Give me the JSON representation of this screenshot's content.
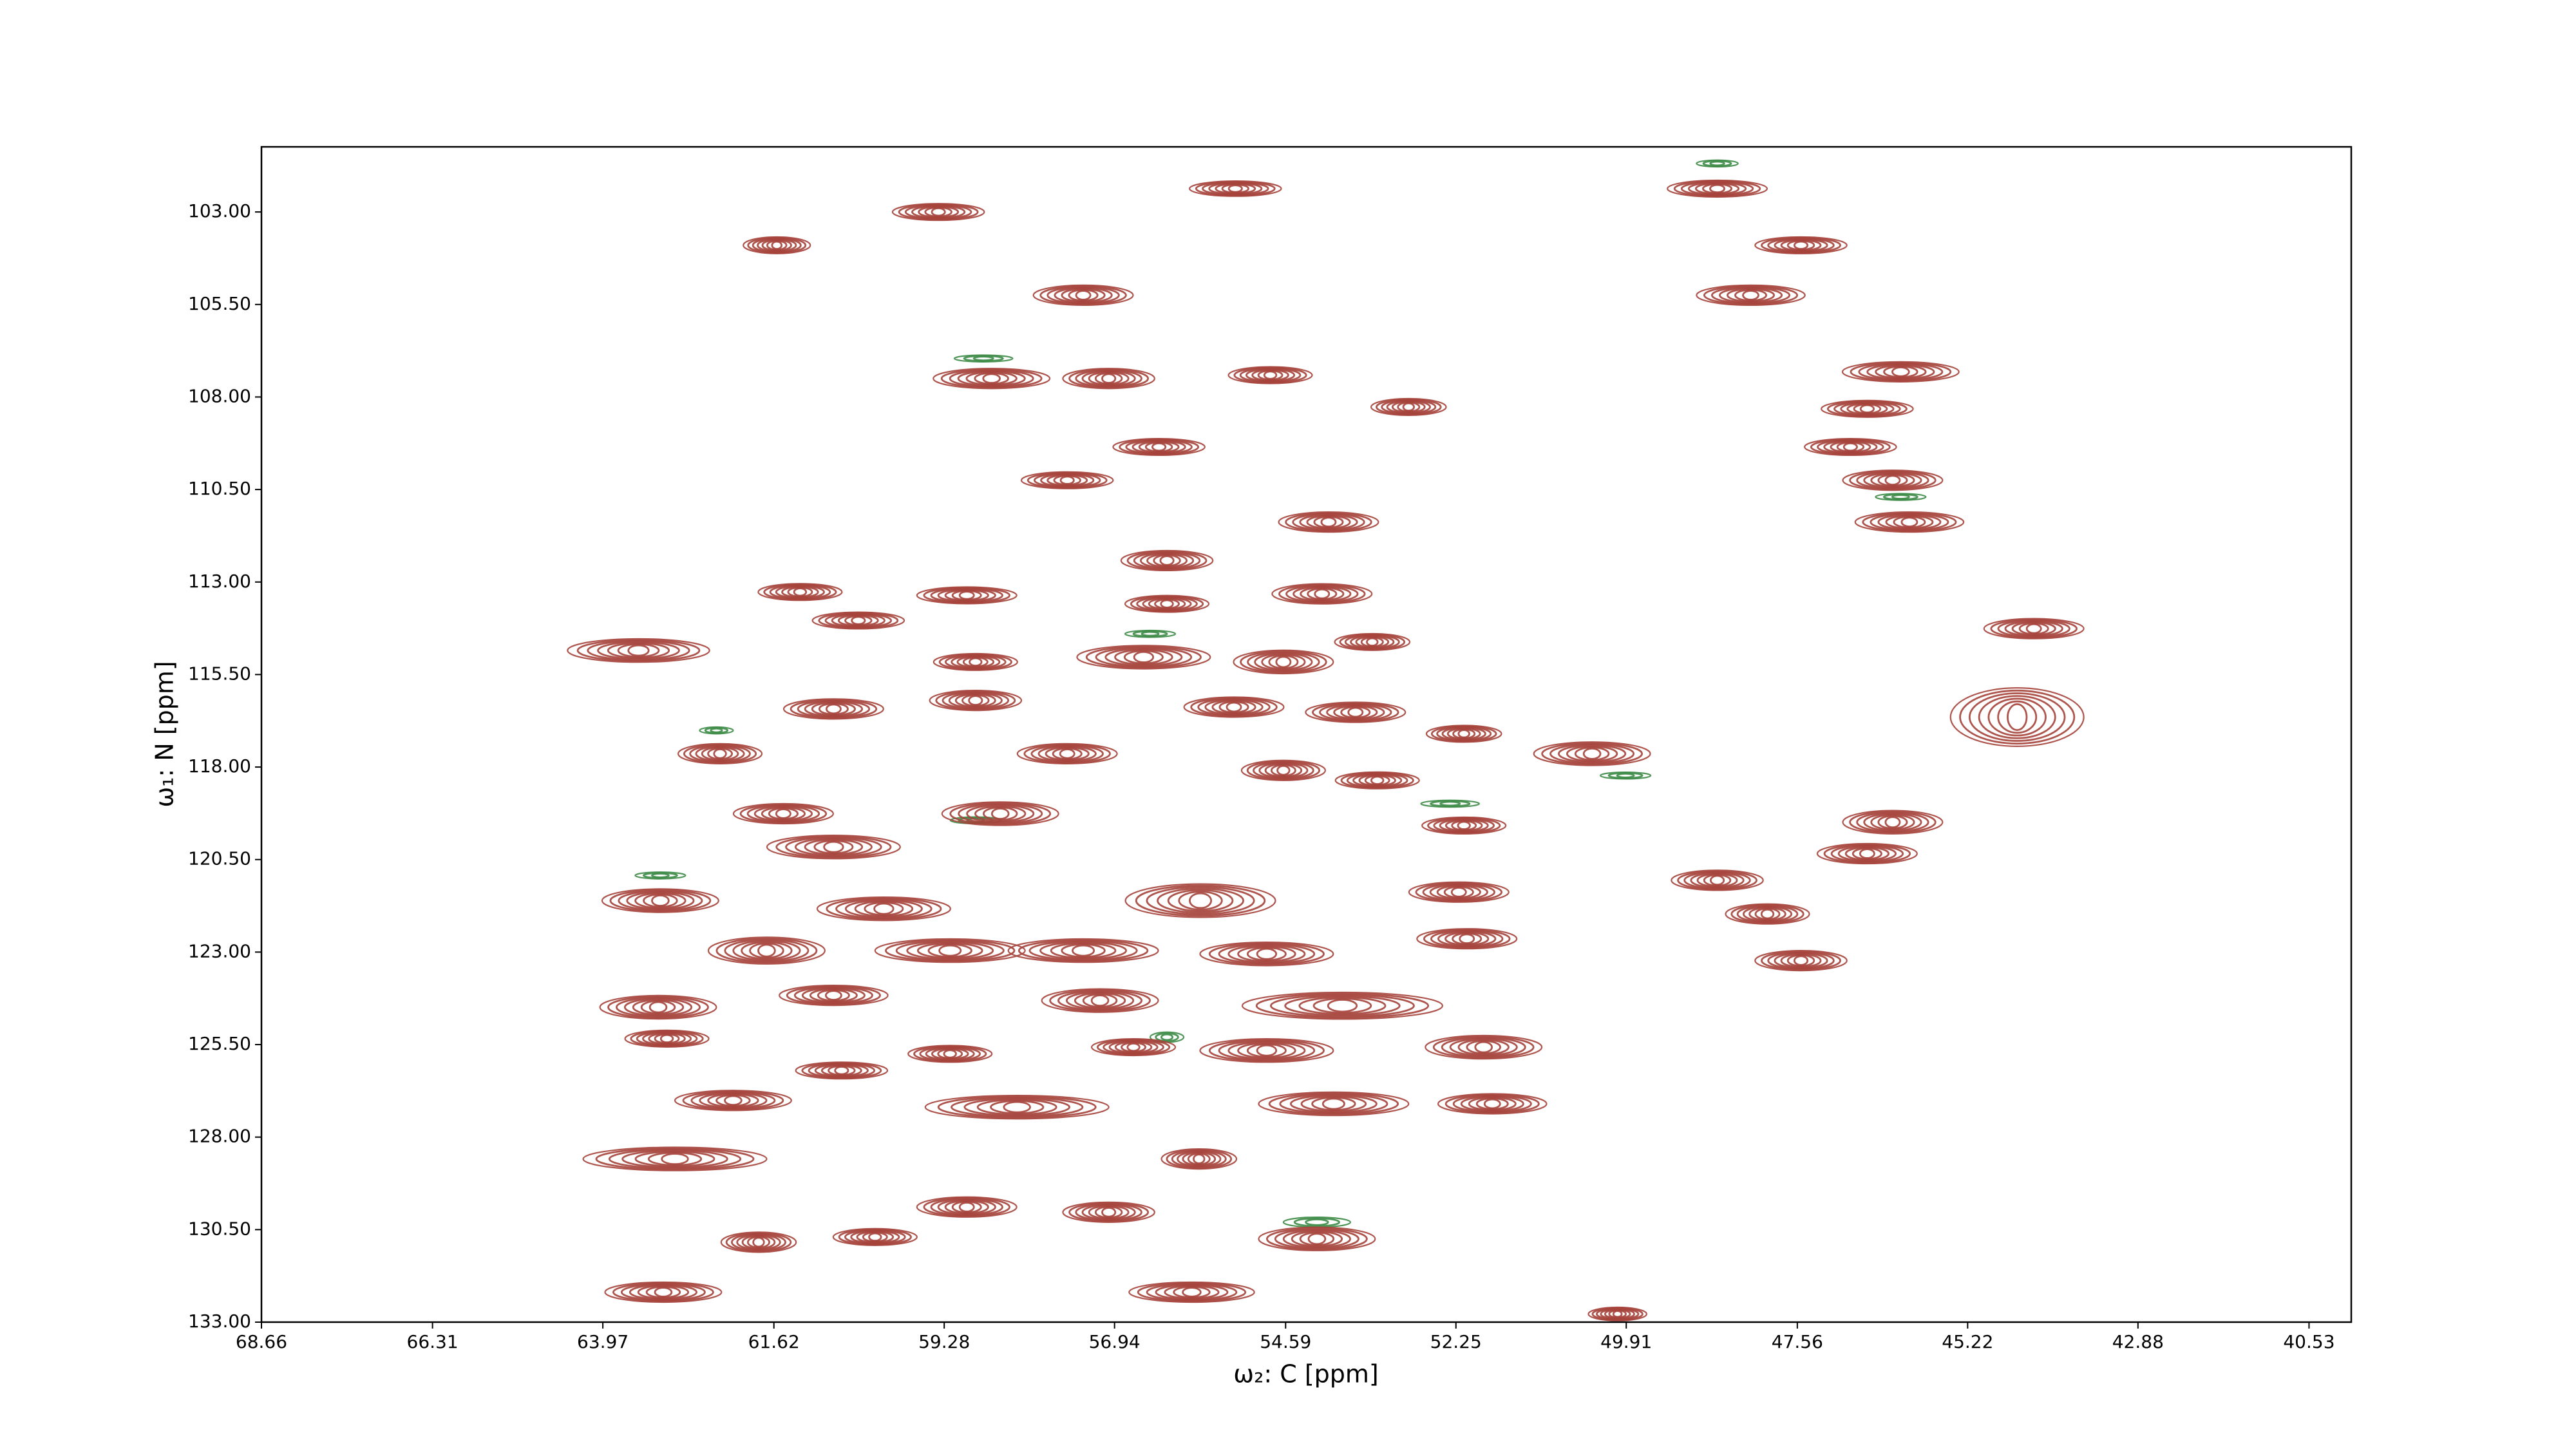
{
  "chart_data": {
    "type": "contour",
    "xlabel": "ω₂: C [ppm]",
    "ylabel": "ω₁: N [ppm]",
    "xlim": [
      68.66,
      39.95
    ],
    "ylim": [
      133.0,
      101.24
    ],
    "xticks": [
      68.66,
      66.31,
      63.97,
      61.62,
      59.28,
      56.94,
      54.59,
      52.25,
      49.91,
      47.56,
      45.22,
      42.88,
      40.53
    ],
    "yticks": [
      {
        "value": 103,
        "label": "103.00"
      },
      {
        "value": 105.5,
        "label": "105.50"
      },
      {
        "value": 108,
        "label": "108.00"
      },
      {
        "value": 110.5,
        "label": "110.50"
      },
      {
        "value": 113,
        "label": "113.00"
      },
      {
        "value": 115.5,
        "label": "115.50"
      },
      {
        "value": 118,
        "label": "118.00"
      },
      {
        "value": 120.5,
        "label": "120.50"
      },
      {
        "value": 123,
        "label": "123.00"
      },
      {
        "value": 125.5,
        "label": "125.50"
      },
      {
        "value": 128,
        "label": "128.00"
      },
      {
        "value": 130.5,
        "label": "130.50"
      },
      {
        "value": 133,
        "label": "133.00"
      }
    ],
    "series": [
      {
        "color": "#3d8b47",
        "levels": 3,
        "x": [
          58.74,
          62.41,
          63.18,
          54.16,
          48.66,
          46.14,
          56.45,
          56.22,
          58.85,
          52.33,
          49.92
        ],
        "values": [
          106.96,
          117.01,
          120.93,
          130.3,
          101.69,
          110.7,
          114.4,
          125.3,
          119.44,
          118.99,
          118.23
        ],
        "x_width": [
          0.8,
          0.46,
          0.69,
          0.92,
          0.57,
          0.69,
          0.69,
          0.46,
          0.69,
          0.8,
          0.69
        ],
        "y_width": [
          0.18,
          0.18,
          0.18,
          0.27,
          0.18,
          0.18,
          0.18,
          0.27,
          0.18,
          0.18,
          0.18
        ]
      },
      {
        "color": "#a5423b",
        "levels": 7,
        "x": [
          59.36,
          61.58,
          55.28,
          48.66,
          47.51,
          48.2,
          57.37,
          58.63,
          57.02,
          54.8,
          52.9,
          56.33,
          57.59,
          46.14,
          46.6,
          46.83,
          46.25,
          46.02,
          54.0,
          56.22,
          54.09,
          56.22,
          58.97,
          61.26,
          60.46,
          63.48,
          56.54,
          54.62,
          53.4,
          58.85,
          58.85,
          60.8,
          55.3,
          53.63,
          52.14,
          50.38,
          44.31,
          44.54,
          62.36,
          61.49,
          57.59,
          54.62,
          53.33,
          52.14,
          60.8,
          58.51,
          46.25,
          46.6,
          48.66,
          47.97,
          63.18,
          60.11,
          55.76,
          52.21,
          61.72,
          59.2,
          57.37,
          54.85,
          52.1,
          47.51,
          63.21,
          60.8,
          57.14,
          53.81,
          63.09,
          60.69,
          59.2,
          56.68,
          54.85,
          51.87,
          62.18,
          58.28,
          53.93,
          51.75,
          62.98,
          55.78,
          58.97,
          57.02,
          54.16,
          61.83,
          60.23,
          55.88,
          63.14,
          50.03
        ],
        "values": [
          103.0,
          103.9,
          102.37,
          102.37,
          103.9,
          105.25,
          105.25,
          107.5,
          107.5,
          107.41,
          108.27,
          109.35,
          110.25,
          107.32,
          108.32,
          109.35,
          110.25,
          111.38,
          111.38,
          112.42,
          113.32,
          113.59,
          113.36,
          113.27,
          114.04,
          114.85,
          115.03,
          115.16,
          114.62,
          115.16,
          116.2,
          116.43,
          116.38,
          116.52,
          117.1,
          117.64,
          114.26,
          116.65,
          117.64,
          119.26,
          117.64,
          118.09,
          118.36,
          119.58,
          120.16,
          119.26,
          119.49,
          120.34,
          121.06,
          121.97,
          121.61,
          121.83,
          121.61,
          121.38,
          122.96,
          122.96,
          122.96,
          123.05,
          122.64,
          123.23,
          124.49,
          124.17,
          124.31,
          124.45,
          125.34,
          126.2,
          125.75,
          125.57,
          125.66,
          125.57,
          127.01,
          127.19,
          127.1,
          127.1,
          128.59,
          128.59,
          129.89,
          130.03,
          130.75,
          130.84,
          130.7,
          132.19,
          132.19,
          132.78
        ],
        "x_width": [
          1.26,
          0.92,
          1.26,
          1.37,
          1.26,
          1.49,
          1.37,
          1.6,
          1.26,
          1.15,
          1.03,
          1.26,
          1.26,
          1.6,
          1.26,
          1.26,
          1.37,
          1.49,
          1.37,
          1.26,
          1.37,
          1.15,
          1.37,
          1.15,
          1.26,
          1.95,
          1.83,
          1.37,
          1.03,
          1.15,
          1.26,
          1.37,
          1.37,
          1.37,
          1.03,
          1.6,
          1.37,
          1.83,
          1.15,
          1.37,
          1.37,
          1.15,
          1.15,
          1.15,
          1.83,
          1.6,
          1.37,
          1.37,
          1.26,
          1.15,
          1.6,
          1.83,
          2.06,
          1.37,
          1.6,
          2.06,
          2.06,
          1.83,
          1.37,
          1.26,
          1.6,
          1.49,
          1.6,
          2.75,
          1.15,
          1.26,
          1.15,
          1.15,
          1.83,
          1.6,
          1.6,
          2.52,
          2.06,
          1.49,
          2.52,
          1.03,
          1.37,
          1.26,
          1.6,
          1.03,
          1.15,
          1.72,
          1.6,
          0.8
        ],
        "y_width": [
          0.45,
          0.45,
          0.41,
          0.45,
          0.45,
          0.54,
          0.54,
          0.54,
          0.54,
          0.45,
          0.45,
          0.45,
          0.45,
          0.54,
          0.45,
          0.45,
          0.54,
          0.54,
          0.54,
          0.54,
          0.54,
          0.45,
          0.45,
          0.45,
          0.45,
          0.63,
          0.63,
          0.63,
          0.45,
          0.45,
          0.54,
          0.54,
          0.54,
          0.54,
          0.45,
          0.63,
          0.54,
          1.58,
          0.54,
          0.54,
          0.54,
          0.54,
          0.45,
          0.45,
          0.63,
          0.63,
          0.63,
          0.54,
          0.54,
          0.54,
          0.63,
          0.63,
          0.9,
          0.54,
          0.72,
          0.63,
          0.63,
          0.63,
          0.54,
          0.54,
          0.63,
          0.54,
          0.63,
          0.72,
          0.45,
          0.45,
          0.45,
          0.45,
          0.63,
          0.63,
          0.54,
          0.63,
          0.63,
          0.54,
          0.63,
          0.54,
          0.54,
          0.54,
          0.63,
          0.54,
          0.45,
          0.54,
          0.54,
          0.36
        ]
      }
    ]
  }
}
